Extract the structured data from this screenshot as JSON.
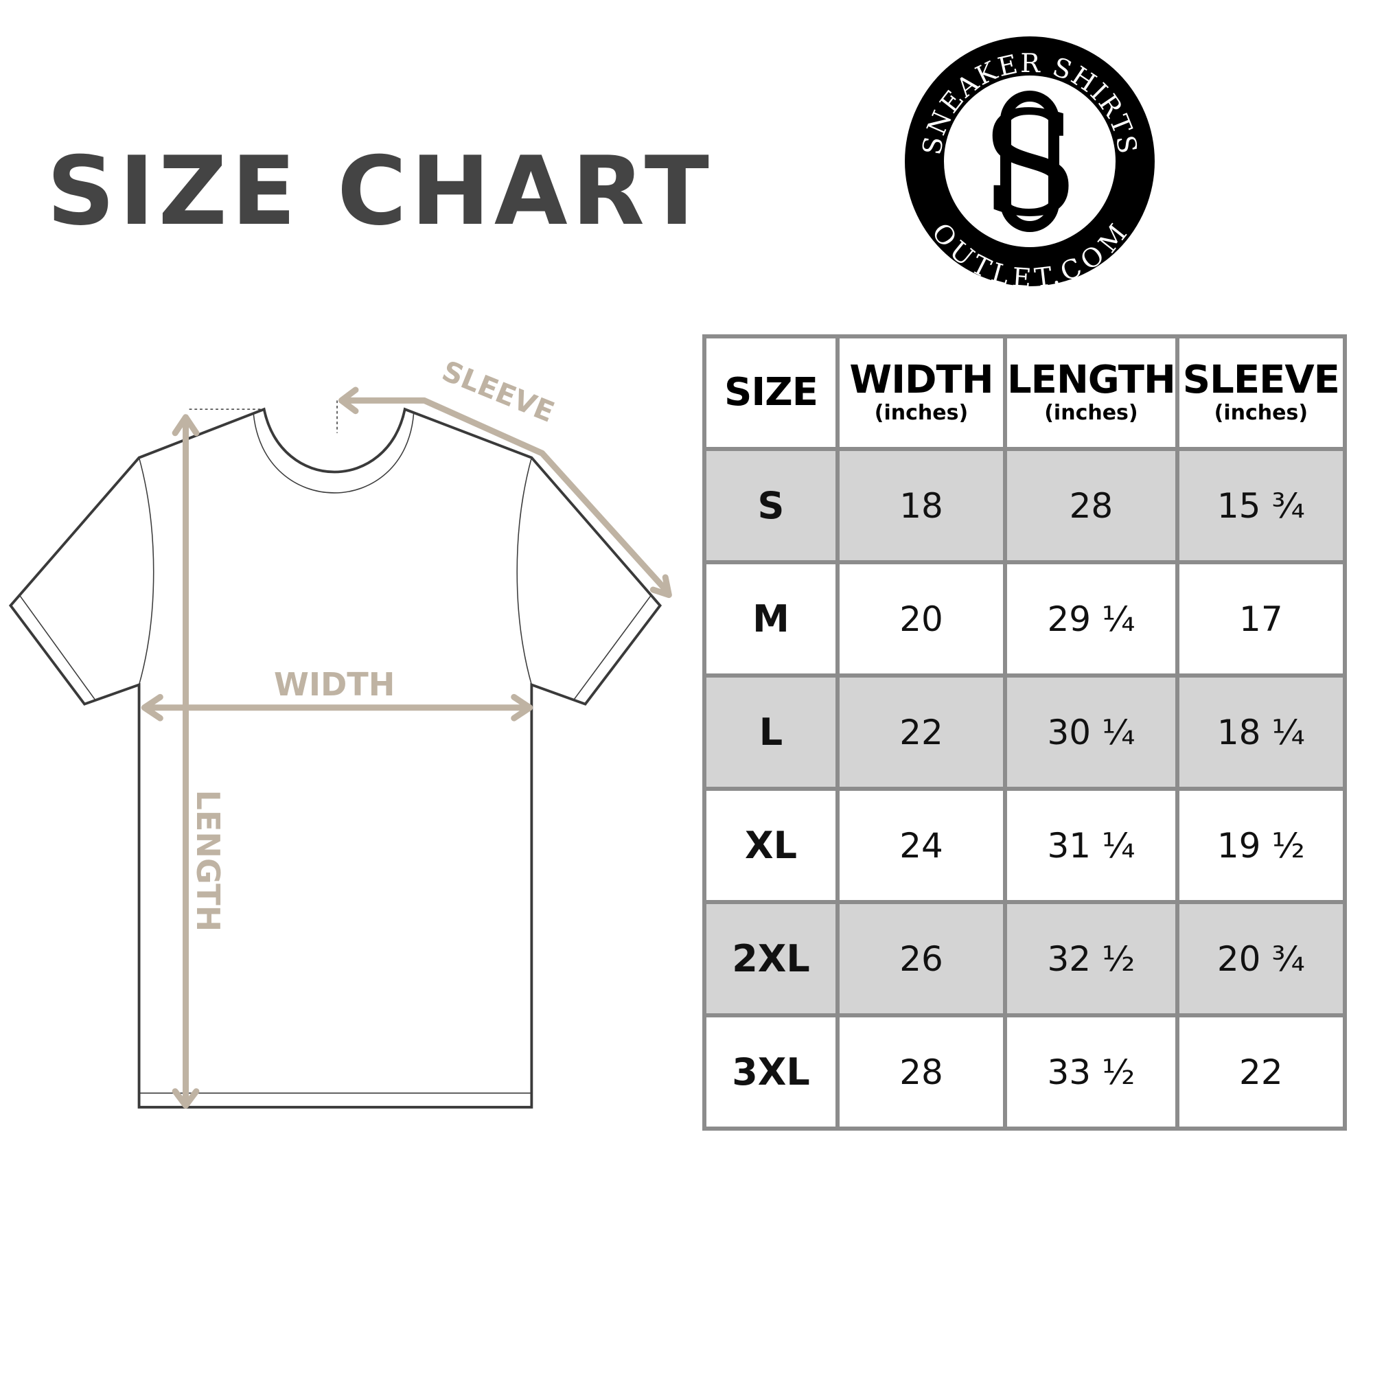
{
  "title": "SIZE CHART",
  "logo": {
    "top_text": "SNEAKER SHIRTS",
    "bottom_text": "OUTLET.COM",
    "monogram": "SO"
  },
  "diagram": {
    "labels": {
      "width": "WIDTH",
      "length": "LENGTH",
      "sleeve": "SLEEVE"
    },
    "arrow_color": "#bfb3a3",
    "outline_color": "#3a3a3a"
  },
  "table": {
    "headers": [
      {
        "label": "SIZE",
        "unit": ""
      },
      {
        "label": "WIDTH",
        "unit": "(inches)"
      },
      {
        "label": "LENGTH",
        "unit": "(inches)"
      },
      {
        "label": "SLEEVE",
        "unit": "(inches)"
      }
    ],
    "rows": [
      [
        "S",
        "18",
        "28",
        "15 ¾"
      ],
      [
        "M",
        "20",
        "29 ¼",
        "17"
      ],
      [
        "L",
        "22",
        "30 ¼",
        "18 ¼"
      ],
      [
        "XL",
        "24",
        "31 ¼",
        "19 ½"
      ],
      [
        "2XL",
        "26",
        "32 ½",
        "20 ¾"
      ],
      [
        "3XL",
        "28",
        "33 ½",
        "22"
      ]
    ],
    "shade_color": "#d4d4d4",
    "border_color": "#8c8c8c"
  }
}
